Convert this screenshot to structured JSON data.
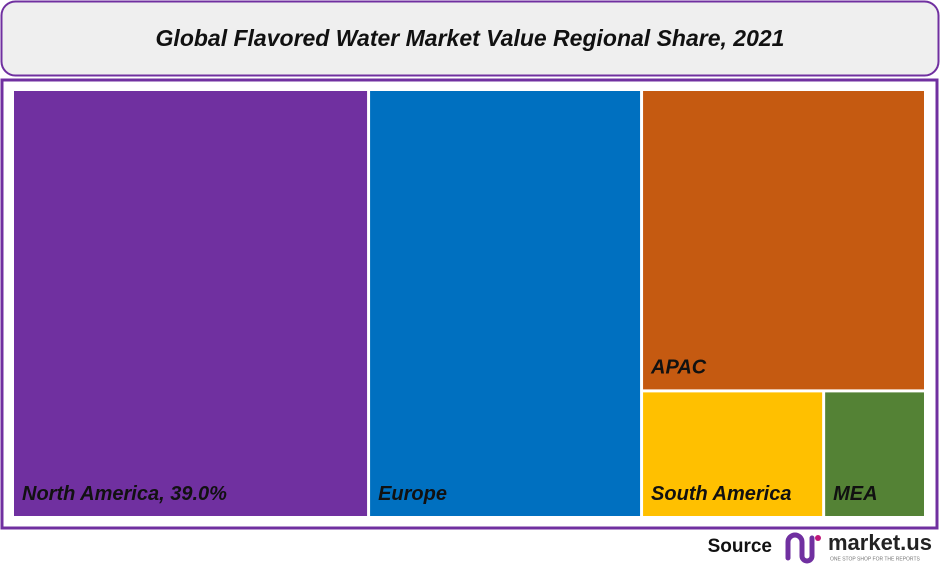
{
  "chart_data": {
    "type": "treemap",
    "title": "Global Flavored Water Market Value Regional Share, 2021",
    "categories": [
      "North America",
      "Europe",
      "APAC",
      "South America",
      "MEA"
    ],
    "values": [
      39.0,
      29.9,
      21.9,
      5.9,
      3.3
    ],
    "value_labels": [
      "39.0%",
      null,
      null,
      null,
      null
    ],
    "colors": [
      "#7030a0",
      "#0070c0",
      "#c55a11",
      "#ffc000",
      "#548235"
    ]
  },
  "footer": {
    "source": "Source",
    "logo": "market.us",
    "tagline": "ONE STOP SHOP FOR THE REPORTS"
  }
}
